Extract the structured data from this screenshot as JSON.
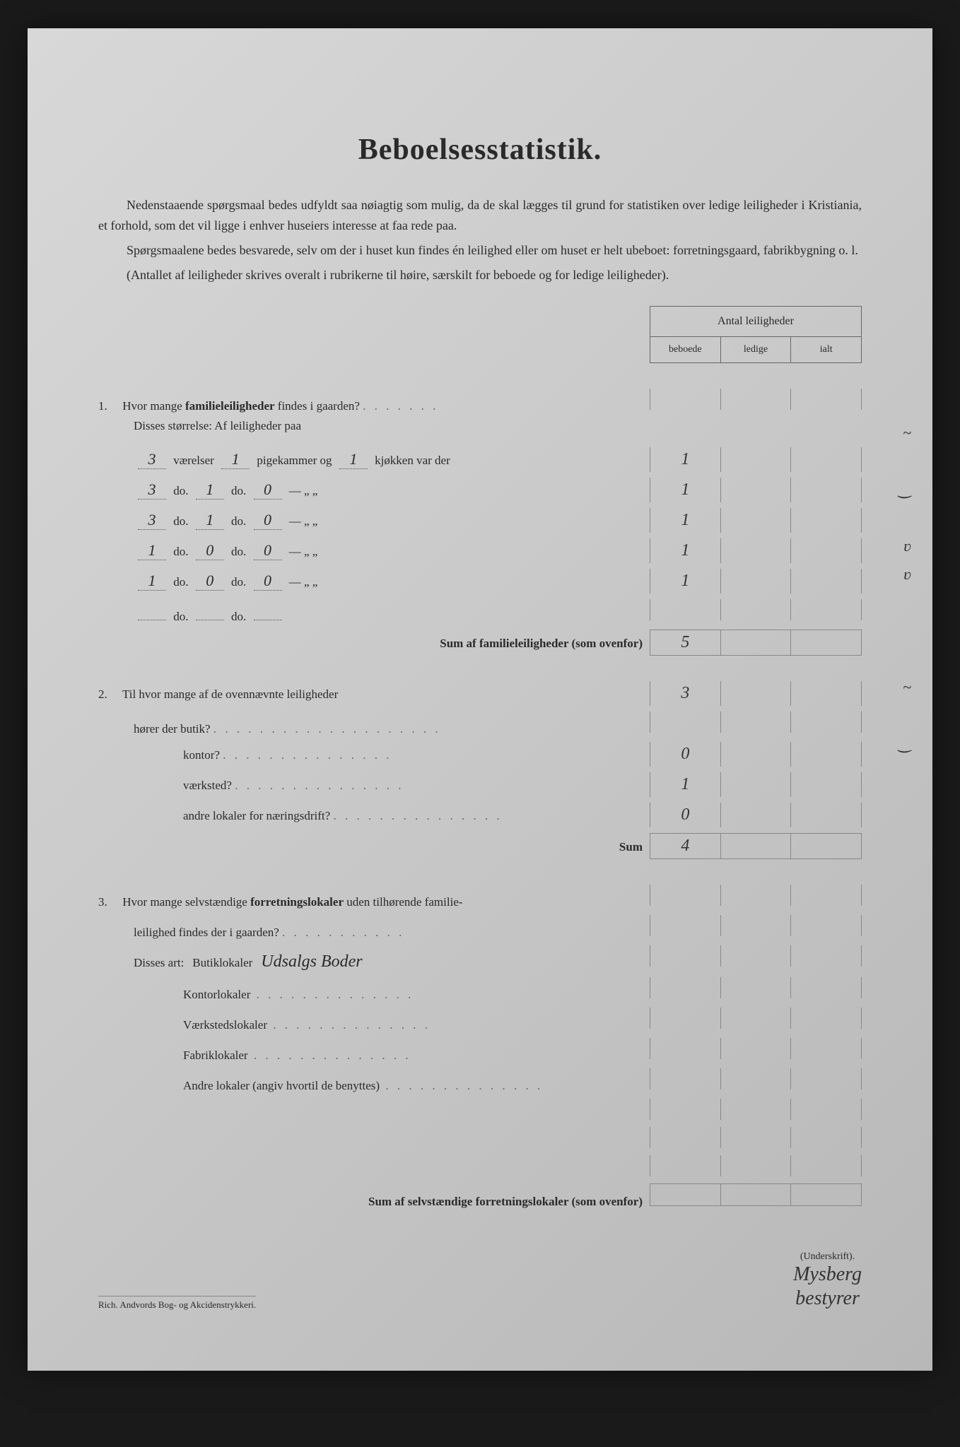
{
  "title": "Beboelsesstatistik.",
  "intro": {
    "p1": "Nedenstaaende spørgsmaal bedes udfyldt saa nøiagtig som mulig, da de skal lægges til grund for statistiken over ledige leiligheder i Kristiania, et forhold, som det vil ligge i enhver huseiers interesse at faa rede paa.",
    "p2": "Spørgsmaalene bedes besvarede, selv om der i huset kun findes én leilighed eller om huset er helt ubeboet: forretningsgaard, fabrikbygning o. l.",
    "p3": "(Antallet af leiligheder skrives overalt i rubrikerne til høire, særskilt for beboede og for ledige leiligheder)."
  },
  "header": {
    "title": "Antal leiligheder",
    "col1": "beboede",
    "col2": "ledige",
    "col3": "ialt"
  },
  "q1": {
    "num": "1.",
    "text": "Hvor mange familieleiligheder findes i gaarden?",
    "sub": "Disses størrelse:   Af leiligheder paa",
    "rows": [
      {
        "vaer": "3",
        "pige": "1",
        "kjok": "1",
        "label_pre": "værelser",
        "label_mid": "pigekammer og",
        "label_end": "kjøkken var der",
        "v1": "1"
      },
      {
        "vaer": "3",
        "pige": "1",
        "kjok": "0",
        "label_pre": "do.",
        "label_mid": "do.",
        "label_end": "—     „  „",
        "v1": "1"
      },
      {
        "vaer": "3",
        "pige": "1",
        "kjok": "0",
        "label_pre": "do.",
        "label_mid": "do.",
        "label_end": "—     „  „",
        "v1": "1"
      },
      {
        "vaer": "1",
        "pige": "0",
        "kjok": "0",
        "label_pre": "do.",
        "label_mid": "do.",
        "label_end": "—     „  „",
        "v1": "1"
      },
      {
        "vaer": "1",
        "pige": "0",
        "kjok": "0",
        "label_pre": "do.",
        "label_mid": "do.",
        "label_end": "—     „  „",
        "v1": "1"
      },
      {
        "vaer": "",
        "pige": "",
        "kjok": "",
        "label_pre": "do.",
        "label_mid": "do.",
        "label_end": "",
        "v1": ""
      }
    ],
    "sum_label": "Sum af familieleiligheder (som ovenfor)",
    "sum_val": "5"
  },
  "q2": {
    "num": "2.",
    "text": "Til hvor mange af de ovennævnte leiligheder",
    "rows": [
      {
        "label": "hører der butik?",
        "v1": "3"
      },
      {
        "label": "kontor?",
        "v1": "0"
      },
      {
        "label": "værksted?",
        "v1": "1"
      },
      {
        "label": "andre lokaler for næringsdrift?",
        "v1": "0"
      }
    ],
    "sum_label": "Sum",
    "sum_val": "4"
  },
  "q3": {
    "num": "3.",
    "text": "Hvor mange selvstændige forretningslokaler uden tilhørende familie-",
    "text2": "leilighed findes der i gaarden?",
    "sub": "Disses art:",
    "rows": [
      {
        "label": "Butiklokaler",
        "hw": "Udsalgs Boder"
      },
      {
        "label": "Kontorlokaler"
      },
      {
        "label": "Værkstedslokaler"
      },
      {
        "label": "Fabriklokaler"
      },
      {
        "label": "Andre lokaler (angiv hvortil de benyttes)"
      }
    ],
    "sum_label": "Sum af selvstændige forretningslokaler (som ovenfor)"
  },
  "margin_notes": [
    "~",
    "‿",
    "ʋ",
    "ʋ",
    "~",
    "‿"
  ],
  "footer": {
    "printer": "Rich. Andvords Bog- og Akcidenstrykkeri.",
    "sig_label": "(Underskrift).",
    "sig1": "Mysberg",
    "sig2": "bestyrer"
  },
  "colors": {
    "bg": "#1a1a1a",
    "paper": "#c8c8c8",
    "text": "#2a2a2a",
    "border": "#666"
  }
}
